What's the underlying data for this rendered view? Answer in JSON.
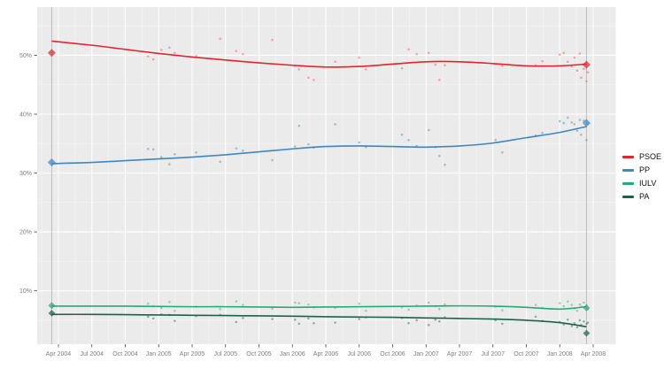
{
  "chart_data": {
    "type": "scatter",
    "title": "",
    "x_axis": {
      "tick_labels": [
        "Apr 2004",
        "Jul 2004",
        "Oct 2004",
        "Jan 2005",
        "Apr 2005",
        "Jul 2005",
        "Oct 2005",
        "Jan 2006",
        "Apr 2006",
        "Jul 2006",
        "Oct 2006",
        "Jan 2007",
        "Apr 2007",
        "Jul 2007",
        "Oct 2007",
        "Jan 2008",
        "Apr 2008"
      ]
    },
    "y_axis": {
      "tick_labels": [
        "10%",
        "20%",
        "30%",
        "40%",
        "50%"
      ],
      "tick_values": [
        10,
        20,
        30,
        40,
        50
      ],
      "ylim": [
        0,
        58
      ]
    },
    "legend": {
      "position": "right",
      "entries": [
        "PSOE",
        "PP",
        "IULV",
        "PA"
      ]
    },
    "panel_color": "#ebebeb",
    "grid_color": "#ffffff",
    "election_line_color": "#bdbdbd",
    "series": [
      {
        "name": "PSOE",
        "color": "#e3242d",
        "scatter_color": "#ea767e",
        "trend_at_ticks": [
          52.4,
          51.7,
          51.0,
          50.3,
          49.7,
          49.2,
          48.7,
          48.3,
          48.0,
          48.1,
          48.5,
          48.9,
          48.9,
          48.6,
          48.2,
          48.2,
          48.5
        ]
      },
      {
        "name": "PP",
        "color": "#3e87c3",
        "scatter_color": "#7e99ad",
        "trend_at_ticks": [
          31.6,
          31.8,
          32.1,
          32.4,
          32.7,
          33.1,
          33.6,
          34.1,
          34.5,
          34.6,
          34.5,
          34.4,
          34.6,
          35.1,
          36.0,
          36.9,
          37.9
        ]
      },
      {
        "name": "IULV",
        "color": "#26aa77",
        "scatter_color": "#6fb598",
        "trend_at_ticks": [
          7.4,
          7.4,
          7.4,
          7.35,
          7.3,
          7.3,
          7.25,
          7.2,
          7.25,
          7.3,
          7.35,
          7.4,
          7.45,
          7.4,
          7.2,
          6.9,
          7.3
        ]
      },
      {
        "name": "PA",
        "color": "#19644a",
        "scatter_color": "#5c8273",
        "trend_at_ticks": [
          6.0,
          6.0,
          5.95,
          5.9,
          5.85,
          5.8,
          5.75,
          5.7,
          5.6,
          5.55,
          5.5,
          5.4,
          5.3,
          5.2,
          5.0,
          4.6,
          3.9
        ]
      }
    ],
    "election_markers": [
      {
        "near_tick": "Apr 2004",
        "x_year": 2004.2,
        "results": {
          "PSOE": 50.4,
          "PP": 31.8,
          "IULV": 7.5,
          "PA": 6.2
        }
      },
      {
        "near_tick": "Apr 2008",
        "x_year": 2008.2,
        "results": {
          "PSOE": 48.4,
          "PP": 38.5,
          "IULV": 7.1,
          "PA": 2.8
        }
      }
    ],
    "polls": [
      {
        "x_year": 2004.92,
        "PSOE": 49.8,
        "PP": 34.1,
        "IULV": 7.8,
        "PA": 5.6
      },
      {
        "x_year": 2004.96,
        "PSOE": 49.3,
        "PP": 34.0,
        "IULV": 7.4,
        "PA": 5.3
      },
      {
        "x_year": 2005.02,
        "PSOE": 50.9,
        "PP": 32.7,
        "IULV": 7.1,
        "PA": 6.0
      },
      {
        "x_year": 2005.08,
        "PSOE": 51.3,
        "PP": 31.5,
        "IULV": 8.1,
        "PA": 5.9
      },
      {
        "x_year": 2005.12,
        "PSOE": 50.4,
        "PP": 33.2,
        "IULV": 6.6,
        "PA": 4.9
      },
      {
        "x_year": 2005.28,
        "PSOE": 49.9,
        "PP": 33.5,
        "IULV": 7.3,
        "PA": 5.7
      },
      {
        "x_year": 2005.46,
        "PSOE": 52.8,
        "PP": 31.9,
        "IULV": 6.9,
        "PA": 5.9
      },
      {
        "x_year": 2005.58,
        "PSOE": 50.7,
        "PP": 34.2,
        "IULV": 8.2,
        "PA": 4.7
      },
      {
        "x_year": 2005.63,
        "PSOE": 50.2,
        "PP": 33.8,
        "IULV": 7.6,
        "PA": 5.4
      },
      {
        "x_year": 2005.85,
        "PSOE": 52.6,
        "PP": 32.2,
        "IULV": 7.0,
        "PA": 5.2
      },
      {
        "x_year": 2006.02,
        "PSOE": 48.2,
        "PP": 34.5,
        "IULV": 8.0,
        "PA": 5.1
      },
      {
        "x_year": 2006.05,
        "PSOE": 47.6,
        "PP": 38.0,
        "IULV": 7.9,
        "PA": 4.4
      },
      {
        "x_year": 2006.12,
        "PSOE": 46.2,
        "PP": 34.9,
        "IULV": 7.7,
        "PA": 5.3
      },
      {
        "x_year": 2006.16,
        "PSOE": 45.8,
        "PP": 34.3,
        "IULV": 7.2,
        "PA": 4.5
      },
      {
        "x_year": 2006.32,
        "PSOE": 48.9,
        "PP": 38.3,
        "IULV": 7.1,
        "PA": 4.6
      },
      {
        "x_year": 2006.5,
        "PSOE": 49.6,
        "PP": 35.2,
        "IULV": 7.8,
        "PA": 5.2
      },
      {
        "x_year": 2006.55,
        "PSOE": 47.6,
        "PP": 34.4,
        "IULV": 6.6,
        "PA": 5.5
      },
      {
        "x_year": 2006.82,
        "PSOE": 47.8,
        "PP": 36.5,
        "IULV": 7.2,
        "PA": 5.4
      },
      {
        "x_year": 2006.87,
        "PSOE": 51.0,
        "PP": 35.6,
        "IULV": 6.8,
        "PA": 4.5
      },
      {
        "x_year": 2006.93,
        "PSOE": 50.2,
        "PP": 34.6,
        "IULV": 7.5,
        "PA": 5.0
      },
      {
        "x_year": 2007.02,
        "PSOE": 50.4,
        "PP": 37.3,
        "IULV": 8.0,
        "PA": 4.2
      },
      {
        "x_year": 2007.07,
        "PSOE": 48.4,
        "PP": 34.4,
        "IULV": 7.4,
        "PA": 5.1
      },
      {
        "x_year": 2007.1,
        "PSOE": 45.8,
        "PP": 32.9,
        "IULV": 6.9,
        "PA": 4.8
      },
      {
        "x_year": 2007.14,
        "PSOE": 48.3,
        "PP": 31.4,
        "IULV": 7.7,
        "PA": 5.5
      },
      {
        "x_year": 2007.52,
        "PSOE": 48.5,
        "PP": 35.6,
        "IULV": 7.3,
        "PA": 5.0
      },
      {
        "x_year": 2007.57,
        "PSOE": 48.2,
        "PP": 33.5,
        "IULV": 6.7,
        "PA": 4.4
      },
      {
        "x_year": 2007.82,
        "PSOE": 48.3,
        "PP": 36.4,
        "IULV": 7.6,
        "PA": 5.6
      },
      {
        "x_year": 2007.87,
        "PSOE": 49.0,
        "PP": 36.8,
        "IULV": 7.1,
        "PA": 4.9
      },
      {
        "x_year": 2008.0,
        "PSOE": 50.1,
        "PP": 38.8,
        "IULV": 7.9,
        "PA": 4.7
      },
      {
        "x_year": 2008.03,
        "PSOE": 50.4,
        "PP": 38.5,
        "IULV": 7.4,
        "PA": 4.3
      },
      {
        "x_year": 2008.06,
        "PSOE": 48.9,
        "PP": 39.4,
        "IULV": 8.2,
        "PA": 5.1
      },
      {
        "x_year": 2008.09,
        "PSOE": 48.1,
        "PP": 38.6,
        "IULV": 7.6,
        "PA": 4.0
      },
      {
        "x_year": 2008.11,
        "PSOE": 49.6,
        "PP": 38.3,
        "IULV": 7.0,
        "PA": 4.5
      },
      {
        "x_year": 2008.13,
        "PSOE": 47.4,
        "PP": 37.2,
        "IULV": 6.6,
        "PA": 3.8
      },
      {
        "x_year": 2008.15,
        "PSOE": 50.3,
        "PP": 39.0,
        "IULV": 7.7,
        "PA": 5.0
      },
      {
        "x_year": 2008.16,
        "PSOE": 46.2,
        "PP": 36.5,
        "IULV": 7.3,
        "PA": 4.2
      },
      {
        "x_year": 2008.18,
        "PSOE": 47.7,
        "PP": 38.9,
        "IULV": 8.0,
        "PA": 4.8
      },
      {
        "x_year": 2008.2,
        "PSOE": 45.6,
        "PP": 35.6,
        "IULV": 7.5,
        "PA": 4.4
      },
      {
        "x_year": 2008.21,
        "PSOE": 47.1,
        "PP": 38.4,
        "IULV": 6.9,
        "PA": 4.6
      }
    ]
  }
}
